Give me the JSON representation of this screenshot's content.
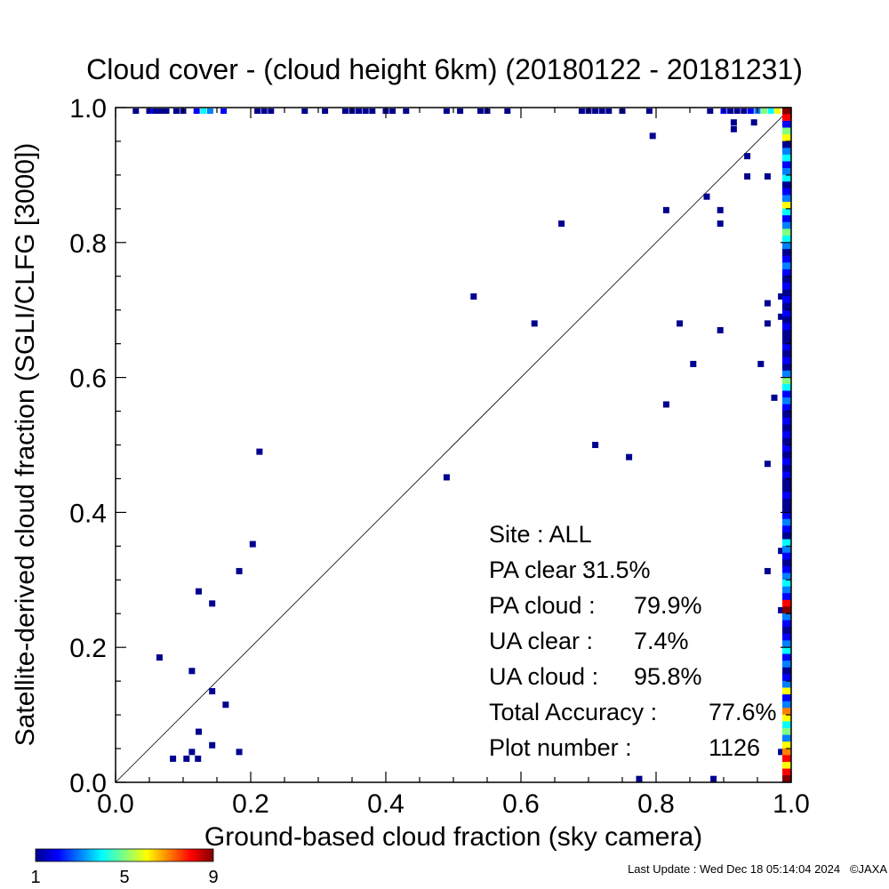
{
  "footer": {
    "last_update": "Last Update : Wed Dec 18 05:14:04 2024",
    "copyright": "©JAXA"
  },
  "chart_data": {
    "type": "scatter",
    "title": "Cloud cover - (cloud height 6km)  (20180122 - 20181231)",
    "xlabel": "Ground-based cloud fraction (sky camera)",
    "ylabel": "Satellite-derived cloud fraction (SGLI/CLFG [3000])",
    "xlim": [
      0.0,
      1.0
    ],
    "ylim": [
      0.0,
      1.0
    ],
    "xticks": [
      "0.0",
      "0.2",
      "0.4",
      "0.6",
      "0.8",
      "1.0"
    ],
    "yticks": [
      "0.0",
      "0.2",
      "0.4",
      "0.6",
      "0.8",
      "1.0"
    ],
    "grid": false,
    "reference_line": "y = x",
    "stats": [
      {
        "label": "Site : ALL",
        "value": ""
      },
      {
        "label": "PA clear :",
        "value": "31.5%"
      },
      {
        "label": "PA cloud :",
        "value": "79.9%"
      },
      {
        "label": "UA clear :",
        "value": "7.4%"
      },
      {
        "label": "UA cloud :",
        "value": "95.8%"
      },
      {
        "label": "Total Accuracy :",
        "value": "77.6%"
      },
      {
        "label": "Plot number :",
        "value": "1126"
      }
    ],
    "colorbar": {
      "min_label": "1",
      "mid_label": "5",
      "max_label": "9",
      "colors": [
        "#00008f",
        "#0000ff",
        "#0080ff",
        "#00ffff",
        "#80ff80",
        "#ffff00",
        "#ff8000",
        "#ff0000",
        "#800000"
      ]
    },
    "points": [
      {
        "x": 0.065,
        "y": 0.185,
        "c": 1
      },
      {
        "x": 0.085,
        "y": 0.035,
        "c": 1
      },
      {
        "x": 0.105,
        "y": 0.035,
        "c": 1
      },
      {
        "x": 0.113,
        "y": 0.045,
        "c": 1
      },
      {
        "x": 0.122,
        "y": 0.035,
        "c": 1
      },
      {
        "x": 0.123,
        "y": 0.075,
        "c": 1
      },
      {
        "x": 0.113,
        "y": 0.165,
        "c": 1
      },
      {
        "x": 0.123,
        "y": 0.283,
        "c": 1
      },
      {
        "x": 0.143,
        "y": 0.055,
        "c": 1
      },
      {
        "x": 0.143,
        "y": 0.135,
        "c": 1
      },
      {
        "x": 0.143,
        "y": 0.265,
        "c": 1
      },
      {
        "x": 0.163,
        "y": 0.115,
        "c": 1
      },
      {
        "x": 0.183,
        "y": 0.045,
        "c": 1
      },
      {
        "x": 0.183,
        "y": 0.313,
        "c": 1
      },
      {
        "x": 0.203,
        "y": 0.353,
        "c": 1
      },
      {
        "x": 0.213,
        "y": 0.49,
        "c": 1
      },
      {
        "x": 0.49,
        "y": 0.452,
        "c": 1
      },
      {
        "x": 0.53,
        "y": 0.72,
        "c": 1
      },
      {
        "x": 0.62,
        "y": 0.68,
        "c": 1
      },
      {
        "x": 0.66,
        "y": 0.828,
        "c": 1
      },
      {
        "x": 0.71,
        "y": 0.5,
        "c": 1
      },
      {
        "x": 0.76,
        "y": 0.482,
        "c": 1
      },
      {
        "x": 0.775,
        "y": 0.005,
        "c": 1
      },
      {
        "x": 0.795,
        "y": 0.958,
        "c": 1
      },
      {
        "x": 0.815,
        "y": 0.848,
        "c": 1
      },
      {
        "x": 0.815,
        "y": 0.56,
        "c": 1
      },
      {
        "x": 0.835,
        "y": 0.68,
        "c": 1
      },
      {
        "x": 0.855,
        "y": 0.62,
        "c": 1
      },
      {
        "x": 0.875,
        "y": 0.868,
        "c": 1
      },
      {
        "x": 0.885,
        "y": 0.005,
        "c": 1
      },
      {
        "x": 0.895,
        "y": 0.848,
        "c": 1
      },
      {
        "x": 0.895,
        "y": 0.828,
        "c": 1
      },
      {
        "x": 0.895,
        "y": 0.67,
        "c": 1
      },
      {
        "x": 0.915,
        "y": 0.978,
        "c": 1
      },
      {
        "x": 0.915,
        "y": 0.968,
        "c": 1
      },
      {
        "x": 0.935,
        "y": 0.928,
        "c": 1
      },
      {
        "x": 0.935,
        "y": 0.898,
        "c": 1
      },
      {
        "x": 0.945,
        "y": 0.978,
        "c": 1
      },
      {
        "x": 0.955,
        "y": 0.62,
        "c": 1
      },
      {
        "x": 0.965,
        "y": 0.898,
        "c": 1
      },
      {
        "x": 0.965,
        "y": 0.71,
        "c": 1
      },
      {
        "x": 0.965,
        "y": 0.68,
        "c": 1
      },
      {
        "x": 0.965,
        "y": 0.472,
        "c": 1
      },
      {
        "x": 0.965,
        "y": 0.313,
        "c": 1
      },
      {
        "x": 0.975,
        "y": 0.57,
        "c": 1
      },
      {
        "x": 0.985,
        "y": 0.72,
        "c": 1
      },
      {
        "x": 0.985,
        "y": 0.69,
        "c": 1
      },
      {
        "x": 0.985,
        "y": 0.343,
        "c": 1
      },
      {
        "x": 0.985,
        "y": 0.255,
        "c": 1
      },
      {
        "x": 0.985,
        "y": 0.045,
        "c": 1
      }
    ],
    "top_row": [
      {
        "x": 0.03,
        "c": 1
      },
      {
        "x": 0.05,
        "c": 1
      },
      {
        "x": 0.055,
        "c": 2
      },
      {
        "x": 0.06,
        "c": 1
      },
      {
        "x": 0.065,
        "c": 1
      },
      {
        "x": 0.07,
        "c": 1
      },
      {
        "x": 0.075,
        "c": 1
      },
      {
        "x": 0.09,
        "c": 1
      },
      {
        "x": 0.1,
        "c": 1
      },
      {
        "x": 0.12,
        "c": 2
      },
      {
        "x": 0.13,
        "c": 4
      },
      {
        "x": 0.14,
        "c": 3
      },
      {
        "x": 0.16,
        "c": 2
      },
      {
        "x": 0.21,
        "c": 1
      },
      {
        "x": 0.22,
        "c": 1
      },
      {
        "x": 0.23,
        "c": 1
      },
      {
        "x": 0.28,
        "c": 1
      },
      {
        "x": 0.31,
        "c": 1
      },
      {
        "x": 0.34,
        "c": 1
      },
      {
        "x": 0.35,
        "c": 1
      },
      {
        "x": 0.36,
        "c": 1
      },
      {
        "x": 0.37,
        "c": 1
      },
      {
        "x": 0.38,
        "c": 1
      },
      {
        "x": 0.4,
        "c": 1
      },
      {
        "x": 0.41,
        "c": 1
      },
      {
        "x": 0.43,
        "c": 1
      },
      {
        "x": 0.49,
        "c": 1
      },
      {
        "x": 0.51,
        "c": 1
      },
      {
        "x": 0.54,
        "c": 1
      },
      {
        "x": 0.55,
        "c": 1
      },
      {
        "x": 0.58,
        "c": 1
      },
      {
        "x": 0.69,
        "c": 1
      },
      {
        "x": 0.7,
        "c": 1
      },
      {
        "x": 0.71,
        "c": 1
      },
      {
        "x": 0.72,
        "c": 1
      },
      {
        "x": 0.73,
        "c": 1
      },
      {
        "x": 0.75,
        "c": 1
      },
      {
        "x": 0.79,
        "c": 1
      },
      {
        "x": 0.88,
        "c": 1
      },
      {
        "x": 0.9,
        "c": 2
      },
      {
        "x": 0.91,
        "c": 1
      },
      {
        "x": 0.92,
        "c": 1
      },
      {
        "x": 0.93,
        "c": 1
      },
      {
        "x": 0.94,
        "c": 2
      },
      {
        "x": 0.95,
        "c": 3
      },
      {
        "x": 0.96,
        "c": 5
      },
      {
        "x": 0.97,
        "c": 4
      },
      {
        "x": 0.98,
        "c": 6
      }
    ],
    "right_column": [
      {
        "y": 0.995,
        "c": 9
      },
      {
        "y": 0.985,
        "c": 8
      },
      {
        "y": 0.975,
        "c": 2
      },
      {
        "y": 0.965,
        "c": 5
      },
      {
        "y": 0.955,
        "c": 6
      },
      {
        "y": 0.945,
        "c": 1
      },
      {
        "y": 0.935,
        "c": 3
      },
      {
        "y": 0.925,
        "c": 4
      },
      {
        "y": 0.915,
        "c": 2
      },
      {
        "y": 0.905,
        "c": 3
      },
      {
        "y": 0.895,
        "c": 4
      },
      {
        "y": 0.885,
        "c": 1
      },
      {
        "y": 0.875,
        "c": 2
      },
      {
        "y": 0.865,
        "c": 3
      },
      {
        "y": 0.855,
        "c": 6
      },
      {
        "y": 0.845,
        "c": 4
      },
      {
        "y": 0.835,
        "c": 2
      },
      {
        "y": 0.825,
        "c": 3
      },
      {
        "y": 0.815,
        "c": 5
      },
      {
        "y": 0.805,
        "c": 4
      },
      {
        "y": 0.795,
        "c": 3
      },
      {
        "y": 0.785,
        "c": 1
      },
      {
        "y": 0.775,
        "c": 2
      },
      {
        "y": 0.765,
        "c": 3
      },
      {
        "y": 0.755,
        "c": 2
      },
      {
        "y": 0.745,
        "c": 1
      },
      {
        "y": 0.735,
        "c": 2
      },
      {
        "y": 0.725,
        "c": 1
      },
      {
        "y": 0.715,
        "c": 2
      },
      {
        "y": 0.705,
        "c": 1
      },
      {
        "y": 0.695,
        "c": 2
      },
      {
        "y": 0.685,
        "c": 1
      },
      {
        "y": 0.675,
        "c": 2
      },
      {
        "y": 0.665,
        "c": 1
      },
      {
        "y": 0.655,
        "c": 1
      },
      {
        "y": 0.645,
        "c": 2
      },
      {
        "y": 0.635,
        "c": 1
      },
      {
        "y": 0.625,
        "c": 2
      },
      {
        "y": 0.615,
        "c": 1
      },
      {
        "y": 0.605,
        "c": 3
      },
      {
        "y": 0.595,
        "c": 5
      },
      {
        "y": 0.585,
        "c": 4
      },
      {
        "y": 0.575,
        "c": 2
      },
      {
        "y": 0.565,
        "c": 3
      },
      {
        "y": 0.555,
        "c": 2
      },
      {
        "y": 0.545,
        "c": 1
      },
      {
        "y": 0.535,
        "c": 2
      },
      {
        "y": 0.525,
        "c": 1
      },
      {
        "y": 0.515,
        "c": 2
      },
      {
        "y": 0.505,
        "c": 1
      },
      {
        "y": 0.495,
        "c": 2
      },
      {
        "y": 0.485,
        "c": 1
      },
      {
        "y": 0.475,
        "c": 2
      },
      {
        "y": 0.465,
        "c": 1
      },
      {
        "y": 0.455,
        "c": 2
      },
      {
        "y": 0.445,
        "c": 1
      },
      {
        "y": 0.435,
        "c": 1
      },
      {
        "y": 0.425,
        "c": 2
      },
      {
        "y": 0.415,
        "c": 1
      },
      {
        "y": 0.405,
        "c": 1
      },
      {
        "y": 0.395,
        "c": 2
      },
      {
        "y": 0.385,
        "c": 3
      },
      {
        "y": 0.375,
        "c": 2
      },
      {
        "y": 0.365,
        "c": 1
      },
      {
        "y": 0.355,
        "c": 4
      },
      {
        "y": 0.345,
        "c": 3
      },
      {
        "y": 0.335,
        "c": 2
      },
      {
        "y": 0.325,
        "c": 1
      },
      {
        "y": 0.315,
        "c": 2
      },
      {
        "y": 0.305,
        "c": 3
      },
      {
        "y": 0.295,
        "c": 4
      },
      {
        "y": 0.285,
        "c": 3
      },
      {
        "y": 0.275,
        "c": 2
      },
      {
        "y": 0.265,
        "c": 8
      },
      {
        "y": 0.255,
        "c": 9
      },
      {
        "y": 0.245,
        "c": 3
      },
      {
        "y": 0.235,
        "c": 2
      },
      {
        "y": 0.225,
        "c": 1
      },
      {
        "y": 0.215,
        "c": 2
      },
      {
        "y": 0.205,
        "c": 3
      },
      {
        "y": 0.195,
        "c": 4
      },
      {
        "y": 0.185,
        "c": 2
      },
      {
        "y": 0.175,
        "c": 3
      },
      {
        "y": 0.165,
        "c": 1
      },
      {
        "y": 0.155,
        "c": 2
      },
      {
        "y": 0.145,
        "c": 3
      },
      {
        "y": 0.135,
        "c": 6
      },
      {
        "y": 0.125,
        "c": 2
      },
      {
        "y": 0.115,
        "c": 3
      },
      {
        "y": 0.105,
        "c": 7
      },
      {
        "y": 0.095,
        "c": 6
      },
      {
        "y": 0.085,
        "c": 4
      },
      {
        "y": 0.075,
        "c": 5
      },
      {
        "y": 0.065,
        "c": 3
      },
      {
        "y": 0.055,
        "c": 6
      },
      {
        "y": 0.045,
        "c": 7
      },
      {
        "y": 0.035,
        "c": 8
      },
      {
        "y": 0.025,
        "c": 6
      },
      {
        "y": 0.015,
        "c": 8
      },
      {
        "y": 0.005,
        "c": 9
      }
    ]
  }
}
